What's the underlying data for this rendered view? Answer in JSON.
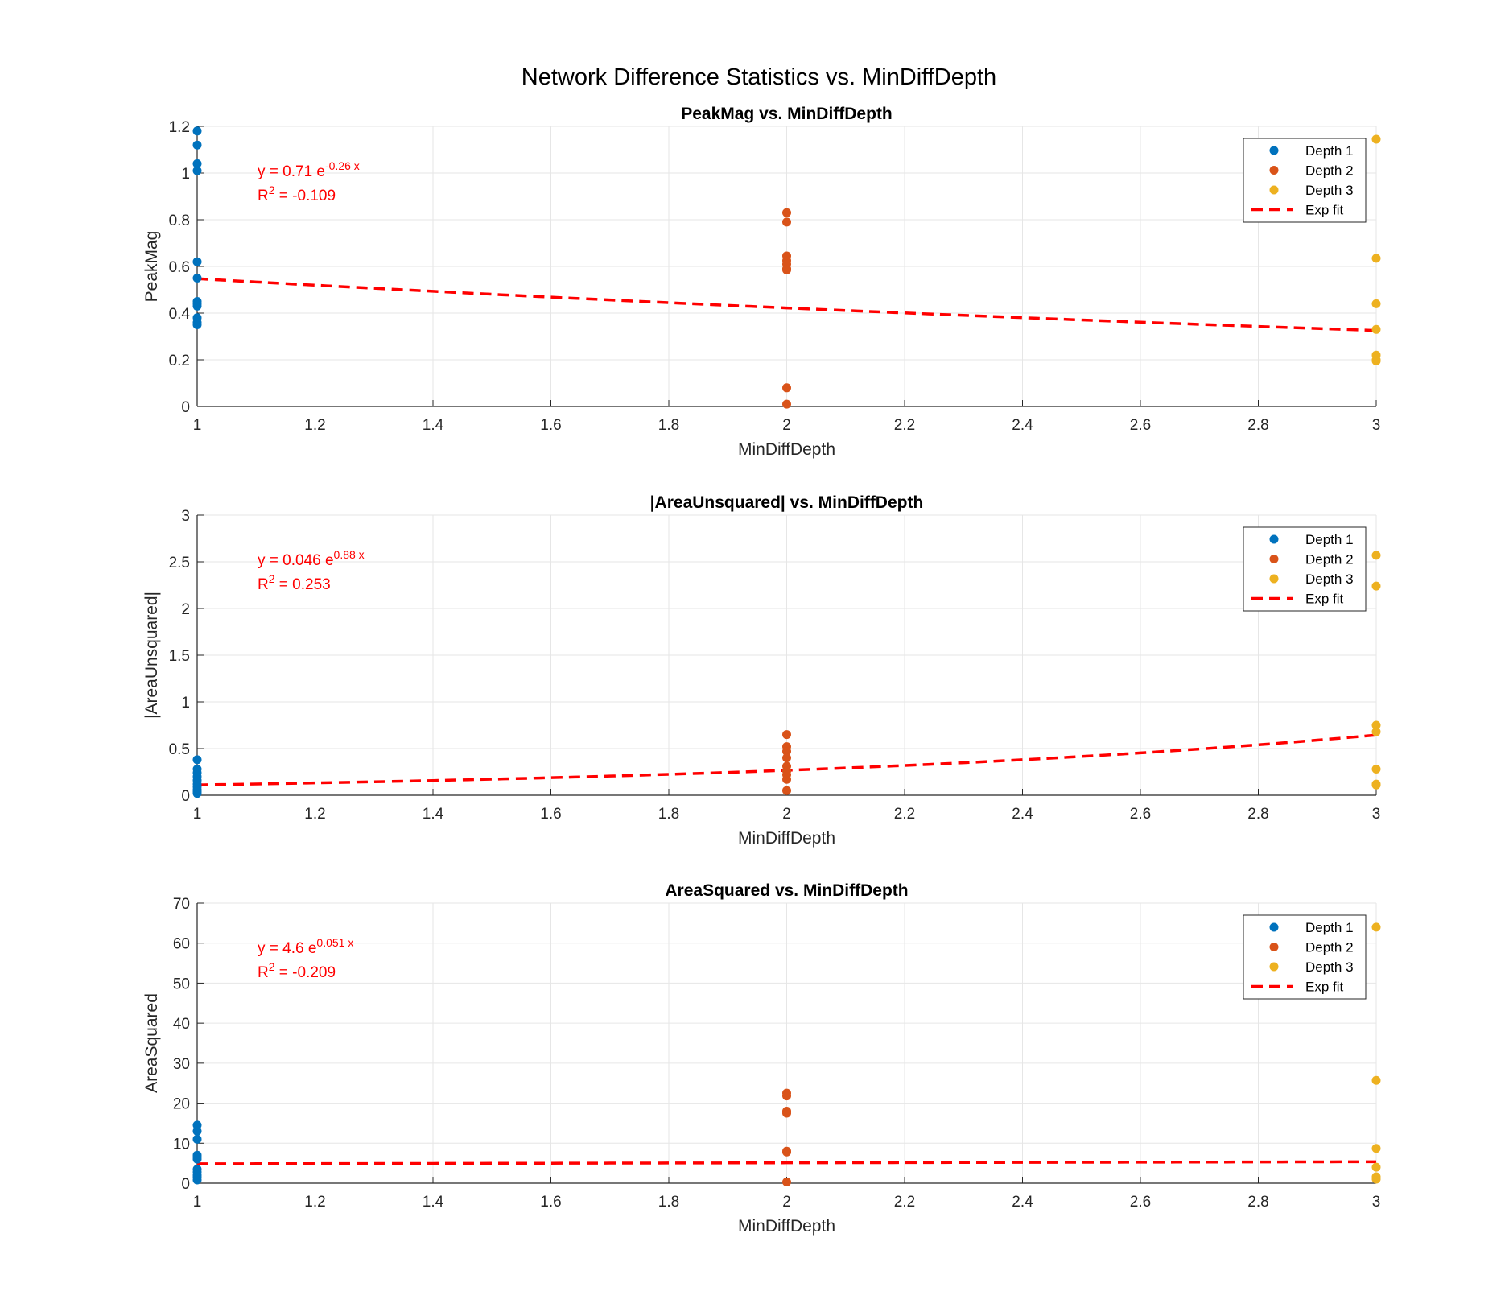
{
  "figure": {
    "suptitle": "Network Difference Statistics vs. MinDiffDepth",
    "colors": {
      "depth1": "#0072BD",
      "depth2": "#D95319",
      "depth3": "#EDB120",
      "fit": "#FF0000",
      "grid": "#e6e6e6",
      "axis": "#262626"
    }
  },
  "chart_data": [
    {
      "type": "scatter",
      "title": "PeakMag vs. MinDiffDepth",
      "xlabel": "MinDiffDepth",
      "ylabel": "PeakMag",
      "xlim": [
        1,
        3
      ],
      "ylim": [
        0,
        1.2
      ],
      "xticks": [
        "1",
        "1.2",
        "1.4",
        "1.6",
        "1.8",
        "2",
        "2.2",
        "2.4",
        "2.6",
        "2.8",
        "3"
      ],
      "yticks": [
        "0",
        "0.2",
        "0.4",
        "0.6",
        "0.8",
        "1",
        "1.2"
      ],
      "grid": true,
      "legend_position": "top-right",
      "series": [
        {
          "name": "Depth 1",
          "x": [
            1,
            1,
            1,
            1,
            1,
            1,
            1,
            1,
            1,
            1,
            1,
            1
          ],
          "y": [
            1.18,
            1.12,
            1.04,
            1.01,
            0.62,
            0.55,
            0.45,
            0.44,
            0.43,
            0.38,
            0.36,
            0.35
          ]
        },
        {
          "name": "Depth 2",
          "x": [
            2,
            2,
            2,
            2,
            2,
            2,
            2,
            2,
            2
          ],
          "y": [
            0.83,
            0.79,
            0.645,
            0.625,
            0.61,
            0.59,
            0.585,
            0.08,
            0.01
          ]
        },
        {
          "name": "Depth 3",
          "x": [
            3,
            3,
            3,
            3,
            3,
            3,
            3
          ],
          "y": [
            1.145,
            0.635,
            0.44,
            0.33,
            0.22,
            0.2,
            0.195
          ]
        }
      ],
      "fit": {
        "name": "Exp fit",
        "a": 0.71,
        "b": -0.26
      },
      "annotation": {
        "equation_prefix": "y = 0.71 e",
        "exponent": "-0.26 x",
        "r2_prefix": "R",
        "r2_sup": "2",
        "r2_value": " = -0.109"
      }
    },
    {
      "type": "scatter",
      "title": "|AreaUnsquared| vs. MinDiffDepth",
      "xlabel": "MinDiffDepth",
      "ylabel": "|AreaUnsquared|",
      "xlim": [
        1,
        3
      ],
      "ylim": [
        0,
        3
      ],
      "xticks": [
        "1",
        "1.2",
        "1.4",
        "1.6",
        "1.8",
        "2",
        "2.2",
        "2.4",
        "2.6",
        "2.8",
        "3"
      ],
      "yticks": [
        "0",
        "0.5",
        "1",
        "1.5",
        "2",
        "2.5",
        "3"
      ],
      "grid": true,
      "legend_position": "top-right",
      "series": [
        {
          "name": "Depth 1",
          "x": [
            1,
            1,
            1,
            1,
            1,
            1,
            1,
            1,
            1,
            1
          ],
          "y": [
            0.38,
            0.28,
            0.24,
            0.2,
            0.16,
            0.12,
            0.09,
            0.06,
            0.04,
            0.02
          ]
        },
        {
          "name": "Depth 2",
          "x": [
            2,
            2,
            2,
            2,
            2,
            2,
            2,
            2,
            2
          ],
          "y": [
            0.65,
            0.52,
            0.47,
            0.4,
            0.31,
            0.26,
            0.22,
            0.17,
            0.05
          ]
        },
        {
          "name": "Depth 3",
          "x": [
            3,
            3,
            3,
            3,
            3,
            3,
            3
          ],
          "y": [
            2.57,
            2.24,
            0.75,
            0.68,
            0.28,
            0.12,
            0.11
          ]
        }
      ],
      "fit": {
        "name": "Exp fit",
        "a": 0.046,
        "b": 0.88
      },
      "annotation": {
        "equation_prefix": "y = 0.046 e",
        "exponent": "0.88 x",
        "r2_prefix": "R",
        "r2_sup": "2",
        "r2_value": " = 0.253"
      }
    },
    {
      "type": "scatter",
      "title": "AreaSquared vs. MinDiffDepth",
      "xlabel": "MinDiffDepth",
      "ylabel": "AreaSquared",
      "xlim": [
        1,
        3
      ],
      "ylim": [
        0,
        70
      ],
      "xticks": [
        "1",
        "1.2",
        "1.4",
        "1.6",
        "1.8",
        "2",
        "2.2",
        "2.4",
        "2.6",
        "2.8",
        "3"
      ],
      "yticks": [
        "0",
        "10",
        "20",
        "30",
        "40",
        "50",
        "60",
        "70"
      ],
      "grid": true,
      "legend_position": "top-right",
      "series": [
        {
          "name": "Depth 1",
          "x": [
            1,
            1,
            1,
            1,
            1,
            1,
            1,
            1,
            1,
            1,
            1
          ],
          "y": [
            14.5,
            13,
            11,
            7,
            6.5,
            6,
            3.5,
            2.8,
            2,
            1.5,
            0.8
          ]
        },
        {
          "name": "Depth 2",
          "x": [
            2,
            2,
            2,
            2,
            2,
            2,
            2
          ],
          "y": [
            22.5,
            21.8,
            18,
            17.5,
            8,
            7.8,
            0.3
          ]
        },
        {
          "name": "Depth 3",
          "x": [
            3,
            3,
            3,
            3,
            3,
            3
          ],
          "y": [
            64,
            25.7,
            8.7,
            4,
            1.6,
            1
          ]
        }
      ],
      "fit": {
        "name": "Exp fit",
        "a": 4.6,
        "b": 0.051
      },
      "annotation": {
        "equation_prefix": "y = 4.6 e",
        "exponent": "0.051 x",
        "r2_prefix": "R",
        "r2_sup": "2",
        "r2_value": " = -0.209"
      }
    }
  ]
}
